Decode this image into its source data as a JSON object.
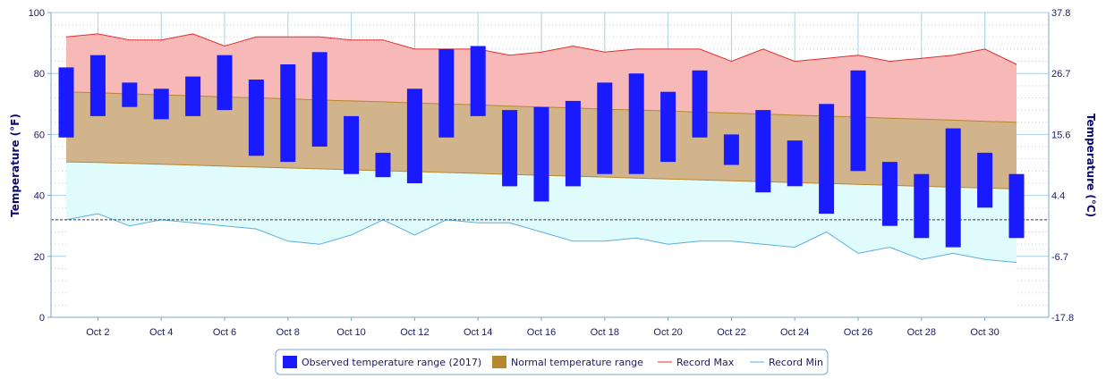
{
  "chart_data": {
    "type": "bar",
    "title": "",
    "xlabel": "",
    "ylabel": "Temperature (°F)",
    "ylabel_right": "Temperature (°C)",
    "ylim": [
      0,
      100
    ],
    "y_ticks": [
      0,
      20,
      40,
      60,
      80,
      100
    ],
    "y_right_ticks": [
      "-17.8",
      "-6.7",
      "4.4",
      "15.6",
      "26.7",
      "37.8"
    ],
    "x_tick_labels": [
      "Oct 2",
      "Oct 4",
      "Oct 6",
      "Oct 8",
      "Oct 10",
      "Oct 12",
      "Oct 14",
      "Oct 16",
      "Oct 18",
      "Oct 20",
      "Oct 22",
      "Oct 24",
      "Oct 26",
      "Oct 28",
      "Oct 30"
    ],
    "x_tick_days": [
      2,
      4,
      6,
      8,
      10,
      12,
      14,
      16,
      18,
      20,
      22,
      24,
      26,
      28,
      30
    ],
    "days": [
      1,
      2,
      3,
      4,
      5,
      6,
      7,
      8,
      9,
      10,
      11,
      12,
      13,
      14,
      15,
      16,
      17,
      18,
      19,
      20,
      21,
      22,
      23,
      24,
      25,
      26,
      27,
      28,
      29,
      30,
      31
    ],
    "grid": true,
    "freezing_line": 32,
    "colors": {
      "observed": "#1a1aff",
      "normal": "#d2b48c",
      "normal_legend": "#b5882e",
      "record_max_line": "#e03030",
      "record_max_fill": "#f7b8b8",
      "record_min_line": "#5aaee0",
      "record_min_fill": "#e0fbfb",
      "grid": "#a8d0e8"
    },
    "series": [
      {
        "name": "Observed temperature range (2017)",
        "low": [
          59,
          66,
          69,
          65,
          66,
          68,
          53,
          51,
          56,
          47,
          46,
          44,
          59,
          66,
          43,
          38,
          43,
          47,
          47,
          51,
          59,
          50,
          41,
          43,
          34,
          48,
          30,
          26,
          23,
          36,
          26
        ],
        "high": [
          82,
          86,
          77,
          75,
          79,
          86,
          78,
          83,
          87,
          66,
          54,
          75,
          88,
          89,
          68,
          69,
          71,
          77,
          80,
          74,
          81,
          60,
          68,
          58,
          70,
          81,
          51,
          47,
          62,
          54,
          47
        ]
      },
      {
        "name": "Normal temperature range",
        "low": [
          51,
          50.8,
          50.5,
          50.2,
          49.9,
          49.6,
          49.3,
          49,
          48.7,
          48.4,
          48.1,
          47.8,
          47.5,
          47.2,
          46.9,
          46.6,
          46.3,
          46,
          45.7,
          45.4,
          45.1,
          44.8,
          44.5,
          44.2,
          43.9,
          43.6,
          43.3,
          43,
          42.7,
          42.4,
          42.1
        ],
        "high": [
          74,
          73.7,
          73.3,
          73,
          72.7,
          72.3,
          72,
          71.7,
          71.3,
          71,
          70.7,
          70.3,
          70,
          69.7,
          69.3,
          69,
          68.7,
          68.3,
          68,
          67.7,
          67.3,
          67,
          66.7,
          66.3,
          66,
          65.7,
          65.3,
          65,
          64.7,
          64.3,
          64
        ]
      },
      {
        "name": "Record Max",
        "values": [
          92,
          93,
          91,
          91,
          93,
          89,
          92,
          92,
          92,
          91,
          91,
          88,
          88,
          88,
          86,
          87,
          89,
          87,
          88,
          88,
          88,
          84,
          88,
          84,
          85,
          86,
          84,
          85,
          86,
          88,
          83
        ]
      },
      {
        "name": "Record Min",
        "values": [
          32,
          34,
          30,
          32,
          31,
          30,
          29,
          25,
          24,
          27,
          32,
          27,
          32,
          31,
          31,
          28,
          25,
          25,
          26,
          24,
          25,
          25,
          24,
          23,
          28,
          21,
          23,
          19,
          21,
          19,
          18
        ]
      }
    ]
  }
}
